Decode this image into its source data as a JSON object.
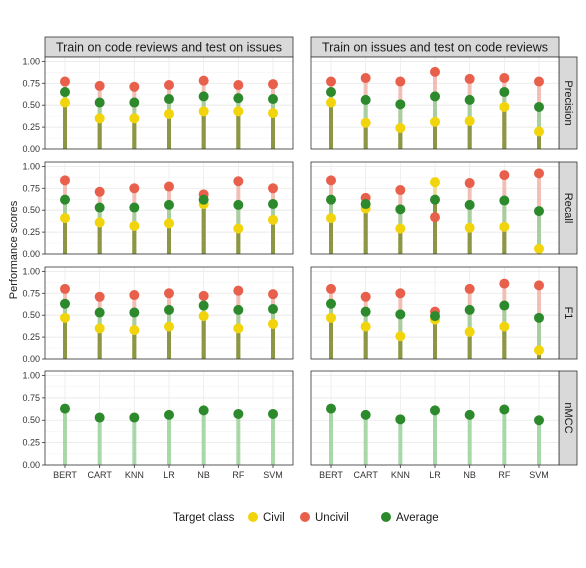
{
  "chart_data": {
    "type": "lollipop",
    "ylabel": "Performance scores",
    "columns": [
      "Train on code reviews and test on issues",
      "Train on issues and test on code reviews"
    ],
    "rows": [
      "Precision",
      "Recall",
      "F1",
      "nMCC"
    ],
    "categories": [
      "BERT",
      "CART",
      "KNN",
      "LR",
      "NB",
      "RF",
      "SVM"
    ],
    "yticks": [
      "0.00",
      "0.25",
      "0.50",
      "0.75",
      "1.00"
    ],
    "ylim": [
      0,
      1.05
    ],
    "grid": true,
    "legend": {
      "title": "Target class",
      "position": "bottom",
      "items": [
        {
          "name": "Civil",
          "color": "#f2d40c"
        },
        {
          "name": "Uncivil",
          "color": "#e8604b"
        },
        {
          "name": "Average",
          "color": "#2c8a2c"
        }
      ]
    },
    "panels": [
      {
        "row": "Precision",
        "col": 0,
        "series": [
          {
            "name": "Civil",
            "values": [
              0.53,
              0.35,
              0.35,
              0.4,
              0.43,
              0.43,
              0.41
            ]
          },
          {
            "name": "Uncivil",
            "values": [
              0.77,
              0.72,
              0.71,
              0.73,
              0.78,
              0.73,
              0.74
            ]
          },
          {
            "name": "Average",
            "values": [
              0.65,
              0.53,
              0.53,
              0.57,
              0.6,
              0.58,
              0.57
            ]
          }
        ]
      },
      {
        "row": "Precision",
        "col": 1,
        "series": [
          {
            "name": "Civil",
            "values": [
              0.53,
              0.3,
              0.24,
              0.31,
              0.32,
              0.48,
              0.2
            ]
          },
          {
            "name": "Uncivil",
            "values": [
              0.77,
              0.81,
              0.77,
              0.88,
              0.8,
              0.81,
              0.77
            ]
          },
          {
            "name": "Average",
            "values": [
              0.65,
              0.56,
              0.51,
              0.6,
              0.56,
              0.65,
              0.48
            ]
          }
        ]
      },
      {
        "row": "Recall",
        "col": 0,
        "series": [
          {
            "name": "Civil",
            "values": [
              0.41,
              0.36,
              0.32,
              0.35,
              0.57,
              0.29,
              0.39
            ]
          },
          {
            "name": "Uncivil",
            "values": [
              0.84,
              0.71,
              0.75,
              0.77,
              0.68,
              0.83,
              0.75
            ]
          },
          {
            "name": "Average",
            "values": [
              0.62,
              0.53,
              0.53,
              0.56,
              0.62,
              0.56,
              0.57
            ]
          }
        ]
      },
      {
        "row": "Recall",
        "col": 1,
        "series": [
          {
            "name": "Civil",
            "values": [
              0.41,
              0.52,
              0.29,
              0.82,
              0.3,
              0.31,
              0.06
            ]
          },
          {
            "name": "Uncivil",
            "values": [
              0.84,
              0.64,
              0.73,
              0.42,
              0.81,
              0.9,
              0.92
            ]
          },
          {
            "name": "Average",
            "values": [
              0.62,
              0.57,
              0.51,
              0.62,
              0.56,
              0.61,
              0.49
            ]
          }
        ]
      },
      {
        "row": "F1",
        "col": 0,
        "series": [
          {
            "name": "Civil",
            "values": [
              0.47,
              0.35,
              0.33,
              0.37,
              0.49,
              0.35,
              0.4
            ]
          },
          {
            "name": "Uncivil",
            "values": [
              0.8,
              0.71,
              0.73,
              0.75,
              0.72,
              0.78,
              0.74
            ]
          },
          {
            "name": "Average",
            "values": [
              0.63,
              0.53,
              0.53,
              0.56,
              0.61,
              0.56,
              0.57
            ]
          }
        ]
      },
      {
        "row": "F1",
        "col": 1,
        "series": [
          {
            "name": "Civil",
            "values": [
              0.47,
              0.37,
              0.26,
              0.45,
              0.31,
              0.37,
              0.1
            ]
          },
          {
            "name": "Uncivil",
            "values": [
              0.8,
              0.71,
              0.75,
              0.54,
              0.8,
              0.86,
              0.84
            ]
          },
          {
            "name": "Average",
            "values": [
              0.63,
              0.54,
              0.51,
              0.49,
              0.56,
              0.61,
              0.47
            ]
          }
        ]
      },
      {
        "row": "nMCC",
        "col": 0,
        "series": [
          {
            "name": "Average",
            "values": [
              0.63,
              0.53,
              0.53,
              0.56,
              0.61,
              0.57,
              0.57
            ]
          }
        ]
      },
      {
        "row": "nMCC",
        "col": 1,
        "series": [
          {
            "name": "Average",
            "values": [
              0.63,
              0.56,
              0.51,
              0.61,
              0.56,
              0.62,
              0.5
            ]
          }
        ]
      }
    ]
  }
}
